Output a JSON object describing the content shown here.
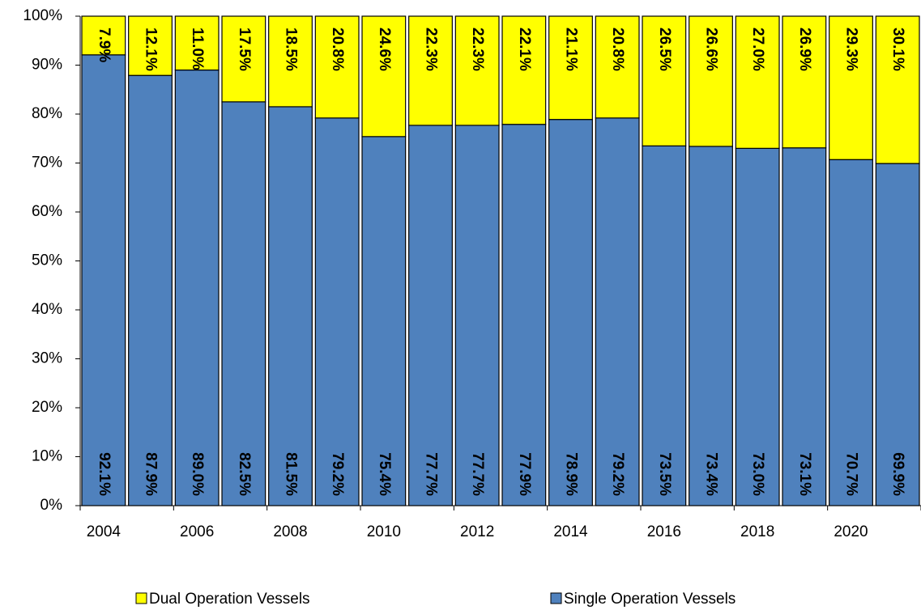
{
  "chart_data": {
    "type": "stacked_bar_100",
    "categories": [
      "2004",
      null,
      "2006",
      null,
      "2008",
      null,
      "2010",
      null,
      "2012",
      null,
      "2014",
      null,
      "2016",
      null,
      "2018",
      null,
      "2020",
      null
    ],
    "series": [
      {
        "name": "Dual Operation Vessels",
        "color": "#ffff00",
        "values": [
          7.9,
          12.1,
          11.0,
          17.5,
          18.5,
          20.8,
          24.6,
          22.3,
          22.3,
          22.1,
          21.1,
          20.8,
          26.5,
          26.6,
          27.0,
          26.9,
          29.3,
          30.1
        ],
        "value_labels": [
          "7.9%",
          "12.1%",
          "11.0%",
          "17.5%",
          "18.5%",
          "20.8%",
          "24.6%",
          "22.3%",
          "22.3%",
          "22.1%",
          "21.1%",
          "20.8%",
          "26.5%",
          "26.6%",
          "27.0%",
          "26.9%",
          "29.3%",
          "30.1%"
        ]
      },
      {
        "name": "Single Operation Vessels",
        "color": "#4f81bd",
        "values": [
          92.1,
          87.9,
          89.0,
          82.5,
          81.5,
          79.2,
          75.4,
          77.7,
          77.7,
          77.9,
          78.9,
          79.2,
          73.5,
          73.4,
          73.0,
          73.1,
          70.7,
          69.9
        ],
        "value_labels": [
          "92.1%",
          "87.9%",
          "89.0%",
          "82.5%",
          "81.5%",
          "79.2%",
          "75.4%",
          "77.7%",
          "77.7%",
          "77.9%",
          "78.9%",
          "79.2%",
          "73.5%",
          "73.4%",
          "73.0%",
          "73.1%",
          "70.7%",
          "69.9%"
        ]
      }
    ],
    "ylim": [
      0,
      100
    ],
    "yticks": [
      {
        "value": 0,
        "label": "0%"
      },
      {
        "value": 10,
        "label": "10%"
      },
      {
        "value": 20,
        "label": "20%"
      },
      {
        "value": 30,
        "label": "30%"
      },
      {
        "value": 40,
        "label": "40%"
      },
      {
        "value": 50,
        "label": "50%"
      },
      {
        "value": 60,
        "label": "60%"
      },
      {
        "value": 70,
        "label": "70%"
      },
      {
        "value": 80,
        "label": "80%"
      },
      {
        "value": 90,
        "label": "90%"
      },
      {
        "value": 100,
        "label": "100%"
      }
    ],
    "legend": "bottom"
  }
}
